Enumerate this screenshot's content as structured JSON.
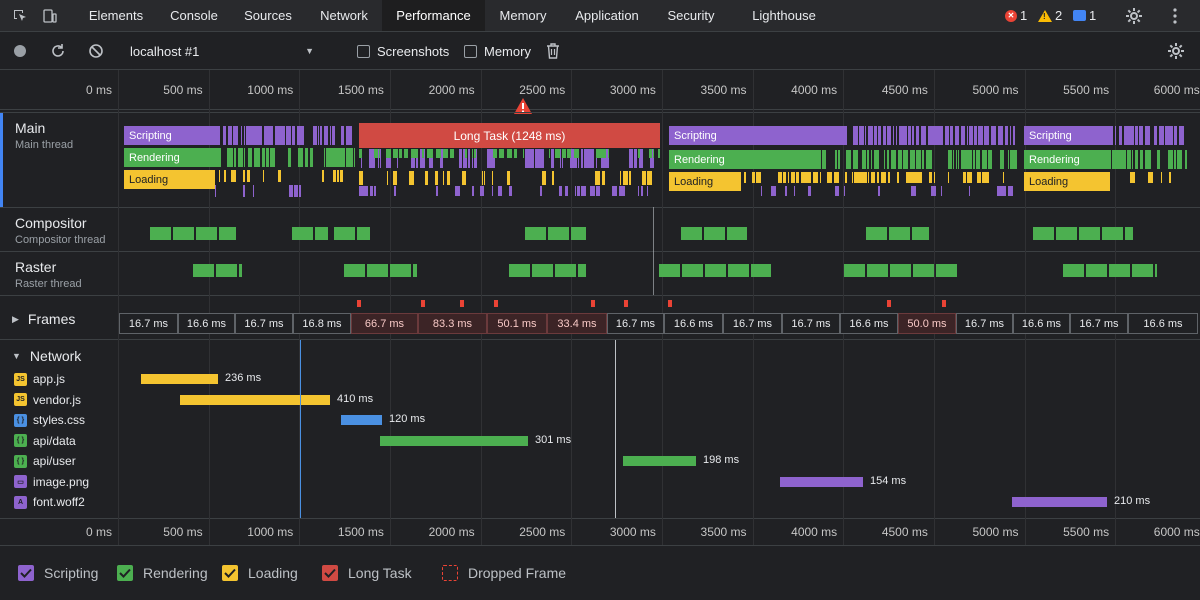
{
  "tabs": {
    "items": [
      "Elements",
      "Console",
      "Sources",
      "Network",
      "Performance",
      "Memory",
      "Application",
      "Security",
      "Lighthouse"
    ],
    "active": "Performance"
  },
  "status": {
    "errors": "1",
    "warnings": "2",
    "messages": "1"
  },
  "toolbar": {
    "profile_select": "localhost #1",
    "screenshots_label": "Screenshots",
    "memory_label": "Memory"
  },
  "ruler": {
    "ticks": [
      "0 ms",
      "500 ms",
      "1000 ms",
      "1500 ms",
      "2000 ms",
      "2500 ms",
      "3000 ms",
      "3500 ms",
      "4000 ms",
      "4500 ms",
      "5000 ms",
      "5500 ms",
      "6000 ms"
    ]
  },
  "tracks": {
    "main": {
      "title": "Main",
      "subtitle": "Main thread"
    },
    "compositor": {
      "title": "Compositor",
      "subtitle": "Compositor thread"
    },
    "raster": {
      "title": "Raster",
      "subtitle": "Raster thread"
    },
    "frames_title": "Frames",
    "network_title": "Network"
  },
  "main_labels": {
    "scripting": "Scripting",
    "rendering": "Rendering",
    "loading": "Loading",
    "long_task": "Long Task (1248 ms)"
  },
  "frames": [
    "16.7 ms",
    "16.6 ms",
    "16.7 ms",
    "16.8 ms",
    "66.7 ms",
    "83.3 ms",
    "50.1 ms",
    "33.4 ms",
    "16.7 ms",
    "16.6 ms",
    "16.7 ms",
    "16.7 ms",
    "16.6 ms",
    "50.0 ms",
    "16.7 ms",
    "16.6 ms",
    "16.7 ms",
    "16.6 ms"
  ],
  "network": [
    {
      "name": "app.js",
      "type": "JS",
      "duration": "236 ms",
      "color": "#f4c430"
    },
    {
      "name": "vendor.js",
      "type": "JS",
      "duration": "410 ms",
      "color": "#f4c430"
    },
    {
      "name": "styles.css",
      "type": "{ }",
      "duration": "120 ms",
      "color": "#4a90e2"
    },
    {
      "name": "api/data",
      "type": "{ }",
      "duration": "301 ms",
      "color": "#4caf50"
    },
    {
      "name": "api/user",
      "type": "{ }",
      "duration": "198 ms",
      "color": "#4caf50"
    },
    {
      "name": "image.png",
      "type": "img",
      "duration": "154 ms",
      "color": "#8e63ce"
    },
    {
      "name": "font.woff2",
      "type": "A",
      "duration": "210 ms",
      "color": "#8e63ce"
    }
  ],
  "legend": [
    {
      "label": "Scripting",
      "color": "#8e63ce"
    },
    {
      "label": "Rendering",
      "color": "#4caf50"
    },
    {
      "label": "Loading",
      "color": "#f4c430"
    },
    {
      "label": "Long Task",
      "color": "#d04a43"
    },
    {
      "label": "Dropped Frame",
      "color": "#ea4335"
    }
  ],
  "colors": {
    "scripting": "#8e63ce",
    "rendering": "#4caf50",
    "loading": "#f4c430",
    "long_task": "#d04a43",
    "dropped": "#ea4335"
  }
}
